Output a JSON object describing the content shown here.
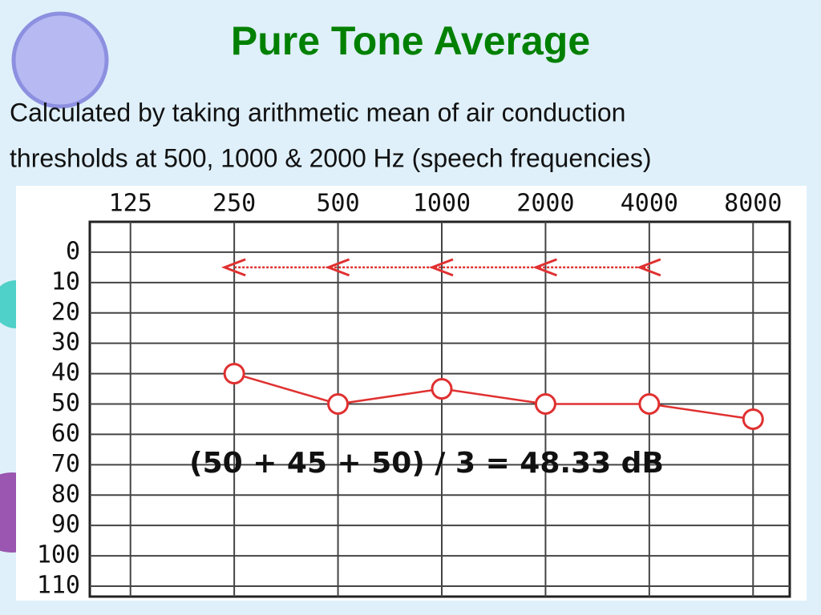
{
  "title": "Pure Tone Average",
  "text": [
    "Calculated by taking arithmetic mean of air conduction",
    "thresholds at 500, 1000 & 2000 Hz (speech frequencies)"
  ],
  "chart_data": {
    "type": "line",
    "categories": [
      "125",
      "250",
      "500",
      "1000",
      "2000",
      "4000",
      "8000"
    ],
    "series": [
      {
        "color": "#e03030",
        "marker": "<",
        "dashed": true,
        "values": [
          null,
          5,
          5,
          5,
          5,
          5,
          null
        ]
      },
      {
        "color": "#e03030",
        "marker": "o",
        "values": [
          null,
          40,
          50,
          45,
          50,
          50,
          55
        ]
      }
    ],
    "ylim": [
      -10,
      110
    ],
    "invert_y": true,
    "yticks": [
      0,
      10,
      20,
      30,
      40,
      50,
      60,
      70,
      80,
      90,
      100,
      110
    ],
    "grid": true,
    "annotation": "(50 + 45 + 50) / 3  = 48.33 dB"
  }
}
